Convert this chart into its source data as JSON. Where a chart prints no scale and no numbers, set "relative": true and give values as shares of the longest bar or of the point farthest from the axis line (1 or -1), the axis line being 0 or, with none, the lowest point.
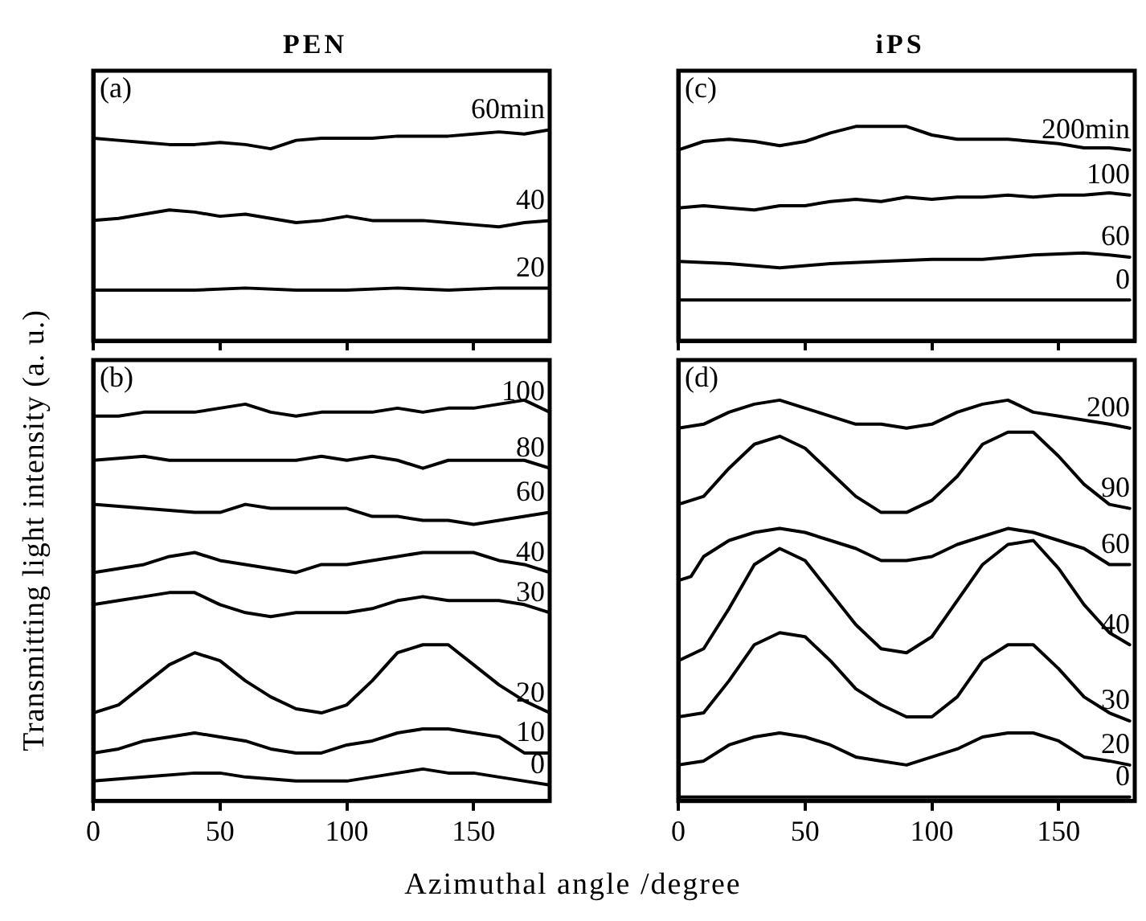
{
  "chart_data": [
    {
      "type": "line",
      "title": "PEN",
      "ylabel": "Transmitting light intensity (a. u.)",
      "annotations": [
        "(a)"
      ],
      "relative": true,
      "xlim": [
        0,
        180
      ],
      "xticks": [
        0,
        50,
        100,
        150
      ],
      "tick_labels": false,
      "series": [
        {
          "name": "60min",
          "color": "#000000",
          "x": [
            0,
            10,
            20,
            30,
            40,
            50,
            60,
            70,
            80,
            90,
            100,
            110,
            120,
            130,
            140,
            150,
            160,
            170,
            180
          ],
          "values": [
            0.96,
            0.95,
            0.94,
            0.93,
            0.93,
            0.94,
            0.93,
            0.91,
            0.95,
            0.96,
            0.96,
            0.96,
            0.97,
            0.97,
            0.97,
            0.98,
            0.99,
            0.98,
            1
          ]
        },
        {
          "name": "40",
          "color": "#000000",
          "x": [
            0,
            10,
            20,
            30,
            40,
            50,
            60,
            70,
            80,
            90,
            100,
            110,
            120,
            130,
            140,
            150,
            160,
            170,
            180
          ],
          "values": [
            0.57,
            0.58,
            0.6,
            0.62,
            0.61,
            0.59,
            0.6,
            0.58,
            0.56,
            0.57,
            0.59,
            0.57,
            0.57,
            0.57,
            0.56,
            0.55,
            0.54,
            0.56,
            0.57
          ]
        },
        {
          "name": "20",
          "color": "#000000",
          "x": [
            0,
            20,
            40,
            60,
            80,
            100,
            120,
            140,
            160,
            180
          ],
          "values": [
            0.24,
            0.24,
            0.24,
            0.25,
            0.24,
            0.24,
            0.25,
            0.24,
            0.25,
            0.25
          ]
        }
      ]
    },
    {
      "type": "line",
      "xlabel": "Azimuthal angle /degree",
      "annotations": [
        "(b)"
      ],
      "relative": true,
      "xlim": [
        0,
        180
      ],
      "xticks": [
        0,
        50,
        100,
        150
      ],
      "tick_labels": "x",
      "series": [
        {
          "name": "100",
          "color": "#000000",
          "x": [
            0,
            10,
            20,
            30,
            40,
            50,
            60,
            70,
            80,
            90,
            100,
            110,
            120,
            130,
            140,
            150,
            160,
            170,
            180
          ],
          "values": [
            0.96,
            0.96,
            0.97,
            0.97,
            0.97,
            0.98,
            0.99,
            0.97,
            0.96,
            0.97,
            0.97,
            0.97,
            0.98,
            0.97,
            0.98,
            0.98,
            0.99,
            1,
            0.97
          ]
        },
        {
          "name": "80",
          "color": "#000000",
          "x": [
            0,
            20,
            30,
            40,
            60,
            80,
            90,
            100,
            110,
            120,
            130,
            140,
            150,
            160,
            170,
            180
          ],
          "values": [
            0.85,
            0.86,
            0.85,
            0.85,
            0.85,
            0.85,
            0.86,
            0.85,
            0.86,
            0.85,
            0.83,
            0.85,
            0.85,
            0.85,
            0.85,
            0.83
          ]
        },
        {
          "name": "60",
          "color": "#000000",
          "x": [
            0,
            20,
            40,
            50,
            60,
            70,
            80,
            100,
            110,
            120,
            130,
            140,
            150,
            160,
            170,
            180
          ],
          "values": [
            0.74,
            0.73,
            0.72,
            0.72,
            0.74,
            0.73,
            0.73,
            0.73,
            0.71,
            0.71,
            0.7,
            0.7,
            0.69,
            0.7,
            0.71,
            0.72
          ]
        },
        {
          "name": "40",
          "color": "#000000",
          "x": [
            0,
            10,
            20,
            30,
            40,
            50,
            60,
            70,
            80,
            90,
            100,
            110,
            120,
            130,
            140,
            150,
            160,
            170,
            180
          ],
          "values": [
            0.57,
            0.58,
            0.59,
            0.61,
            0.62,
            0.6,
            0.59,
            0.58,
            0.57,
            0.59,
            0.59,
            0.6,
            0.61,
            0.62,
            0.62,
            0.62,
            0.6,
            0.59,
            0.57
          ]
        },
        {
          "name": "30",
          "color": "#000000",
          "x": [
            0,
            10,
            20,
            30,
            40,
            50,
            60,
            70,
            80,
            90,
            100,
            110,
            120,
            130,
            140,
            150,
            160,
            170,
            180
          ],
          "values": [
            0.49,
            0.5,
            0.51,
            0.52,
            0.52,
            0.49,
            0.47,
            0.46,
            0.47,
            0.47,
            0.47,
            0.48,
            0.5,
            0.51,
            0.5,
            0.5,
            0.5,
            0.49,
            0.47
          ]
        },
        {
          "name": "20",
          "color": "#000000",
          "x": [
            0,
            10,
            20,
            30,
            40,
            50,
            60,
            70,
            80,
            90,
            100,
            110,
            120,
            130,
            140,
            150,
            160,
            170,
            180
          ],
          "values": [
            0.22,
            0.24,
            0.29,
            0.34,
            0.37,
            0.35,
            0.3,
            0.26,
            0.23,
            0.22,
            0.24,
            0.3,
            0.37,
            0.39,
            0.39,
            0.34,
            0.29,
            0.25,
            0.22
          ]
        },
        {
          "name": "10",
          "color": "#000000",
          "x": [
            0,
            10,
            20,
            30,
            40,
            50,
            60,
            70,
            80,
            90,
            100,
            110,
            120,
            130,
            140,
            150,
            160,
            170,
            180
          ],
          "values": [
            0.12,
            0.13,
            0.15,
            0.16,
            0.17,
            0.16,
            0.15,
            0.13,
            0.12,
            0.12,
            0.14,
            0.15,
            0.17,
            0.18,
            0.18,
            0.17,
            0.16,
            0.12,
            0.12
          ]
        },
        {
          "name": "0",
          "color": "#000000",
          "x": [
            0,
            20,
            40,
            50,
            60,
            80,
            100,
            110,
            120,
            130,
            140,
            150,
            160,
            180
          ],
          "values": [
            0.05,
            0.06,
            0.07,
            0.07,
            0.06,
            0.05,
            0.05,
            0.06,
            0.07,
            0.08,
            0.07,
            0.07,
            0.06,
            0.04
          ]
        }
      ]
    },
    {
      "type": "line",
      "title": "iPS",
      "annotations": [
        "(c)"
      ],
      "relative": true,
      "xlim": [
        0,
        180
      ],
      "xticks": [
        0,
        50,
        100,
        150
      ],
      "tick_labels": false,
      "series": [
        {
          "name": "200min",
          "color": "#000000",
          "x": [
            0,
            10,
            20,
            30,
            40,
            50,
            60,
            70,
            80,
            90,
            100,
            110,
            120,
            130,
            140,
            150,
            160,
            170,
            178
          ],
          "values": [
            0.89,
            0.93,
            0.94,
            0.93,
            0.91,
            0.93,
            0.97,
            1,
            1,
            1,
            0.96,
            0.94,
            0.94,
            0.94,
            0.93,
            0.92,
            0.9,
            0.9,
            0.89
          ]
        },
        {
          "name": "100",
          "color": "#000000",
          "x": [
            0,
            10,
            20,
            30,
            40,
            50,
            60,
            70,
            80,
            90,
            100,
            110,
            120,
            130,
            140,
            150,
            160,
            170,
            178
          ],
          "values": [
            0.62,
            0.63,
            0.62,
            0.61,
            0.63,
            0.63,
            0.65,
            0.66,
            0.65,
            0.67,
            0.66,
            0.67,
            0.67,
            0.68,
            0.67,
            0.68,
            0.68,
            0.69,
            0.68
          ]
        },
        {
          "name": "60",
          "color": "#000000",
          "x": [
            0,
            20,
            40,
            60,
            80,
            100,
            120,
            140,
            160,
            170,
            178
          ],
          "values": [
            0.37,
            0.36,
            0.34,
            0.36,
            0.37,
            0.38,
            0.38,
            0.4,
            0.41,
            0.4,
            0.39
          ]
        },
        {
          "name": "0",
          "color": "#000000",
          "x": [
            0,
            60,
            120,
            178
          ],
          "values": [
            0.19,
            0.19,
            0.19,
            0.19
          ]
        }
      ]
    },
    {
      "type": "line",
      "annotations": [
        "(d)"
      ],
      "relative": true,
      "xlim": [
        0,
        180
      ],
      "xticks": [
        0,
        50,
        100,
        150
      ],
      "tick_labels": "x",
      "series": [
        {
          "name": "200",
          "color": "#000000",
          "x": [
            0,
            10,
            20,
            30,
            40,
            50,
            60,
            70,
            80,
            90,
            100,
            110,
            120,
            130,
            140,
            150,
            160,
            170,
            178
          ],
          "values": [
            0.93,
            0.94,
            0.97,
            0.99,
            1,
            0.98,
            0.96,
            0.94,
            0.94,
            0.93,
            0.94,
            0.97,
            0.99,
            1,
            0.97,
            0.96,
            0.95,
            0.94,
            0.93
          ]
        },
        {
          "name": "90",
          "color": "#000000",
          "x": [
            0,
            10,
            20,
            30,
            40,
            50,
            60,
            70,
            80,
            90,
            100,
            110,
            120,
            130,
            140,
            150,
            160,
            170,
            178
          ],
          "values": [
            0.74,
            0.76,
            0.83,
            0.89,
            0.91,
            0.88,
            0.82,
            0.76,
            0.72,
            0.72,
            0.75,
            0.81,
            0.89,
            0.92,
            0.92,
            0.86,
            0.79,
            0.74,
            0.73
          ]
        },
        {
          "name": "60",
          "color": "#000000",
          "x": [
            0,
            5,
            10,
            20,
            30,
            40,
            50,
            60,
            70,
            80,
            90,
            100,
            110,
            120,
            130,
            140,
            150,
            160,
            170,
            178
          ],
          "values": [
            0.55,
            0.56,
            0.61,
            0.65,
            0.67,
            0.68,
            0.67,
            0.65,
            0.63,
            0.6,
            0.6,
            0.61,
            0.64,
            0.66,
            0.68,
            0.67,
            0.65,
            0.63,
            0.59,
            0.59
          ]
        },
        {
          "name": "40",
          "color": "#000000",
          "x": [
            0,
            10,
            20,
            30,
            40,
            50,
            60,
            70,
            80,
            90,
            100,
            110,
            120,
            130,
            140,
            150,
            160,
            170,
            178
          ],
          "values": [
            0.35,
            0.38,
            0.48,
            0.59,
            0.63,
            0.6,
            0.52,
            0.44,
            0.38,
            0.37,
            0.41,
            0.5,
            0.59,
            0.64,
            0.65,
            0.58,
            0.49,
            0.42,
            0.39
          ]
        },
        {
          "name": "30",
          "color": "#000000",
          "x": [
            0,
            10,
            20,
            30,
            40,
            50,
            60,
            70,
            80,
            90,
            100,
            110,
            120,
            130,
            140,
            150,
            160,
            170,
            178
          ],
          "values": [
            0.21,
            0.22,
            0.3,
            0.39,
            0.42,
            0.41,
            0.35,
            0.28,
            0.24,
            0.21,
            0.21,
            0.26,
            0.35,
            0.39,
            0.39,
            0.33,
            0.26,
            0.22,
            0.2
          ]
        },
        {
          "name": "20",
          "color": "#000000",
          "x": [
            0,
            10,
            20,
            30,
            40,
            50,
            60,
            70,
            80,
            90,
            100,
            110,
            120,
            130,
            140,
            150,
            160,
            170,
            178
          ],
          "values": [
            0.09,
            0.1,
            0.14,
            0.16,
            0.17,
            0.16,
            0.14,
            0.11,
            0.1,
            0.09,
            0.11,
            0.13,
            0.16,
            0.17,
            0.17,
            0.15,
            0.11,
            0.1,
            0.09
          ]
        },
        {
          "name": "0",
          "color": "#000000",
          "x": [
            0,
            90,
            178
          ],
          "values": [
            0.01,
            0.01,
            0.01
          ]
        }
      ]
    }
  ]
}
